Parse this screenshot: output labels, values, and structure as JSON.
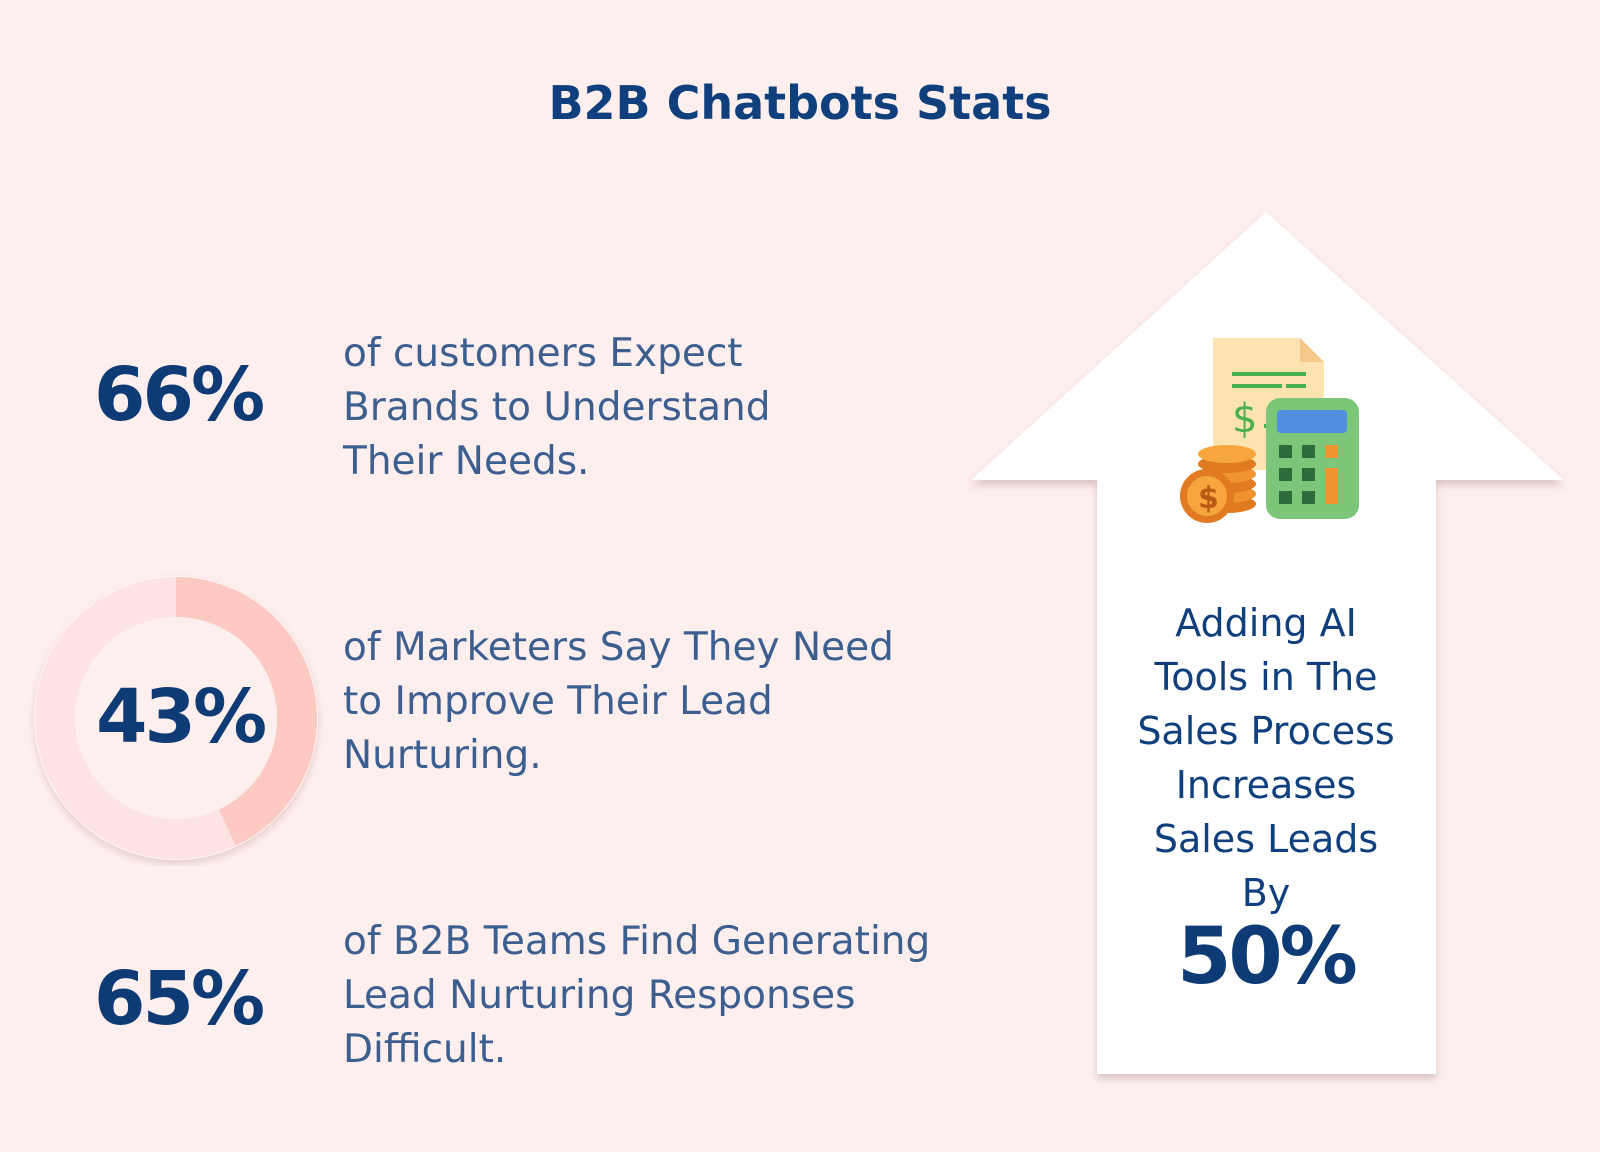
{
  "title": "B2B Chatbots Stats",
  "stats": [
    {
      "value": "66%",
      "lines": [
        "of customers Expect",
        "Brands to Understand",
        "Their Needs."
      ]
    },
    {
      "value": "43%",
      "lines": [
        "of Marketers Say They Need",
        "to Improve Their Lead",
        "Nurturing."
      ],
      "ring_fraction": 0.43
    },
    {
      "value": "65%",
      "lines": [
        "of B2B Teams Find Generating",
        "Lead Nurturing Responses",
        "Difficult."
      ]
    }
  ],
  "arrow": {
    "lines": [
      "Adding AI",
      "Tools in The",
      "Sales Process",
      "Increases",
      "Sales Leads",
      "By"
    ],
    "value": "50%",
    "icon": "calculator-invoice-coins-icon"
  },
  "colors": {
    "background": "#fdefee",
    "title": "#0f3f7d",
    "value": "#0e3b75",
    "text": "#3d5f8f",
    "ring_track": "#fde3e1",
    "ring_fill": "#fcc9c3"
  }
}
